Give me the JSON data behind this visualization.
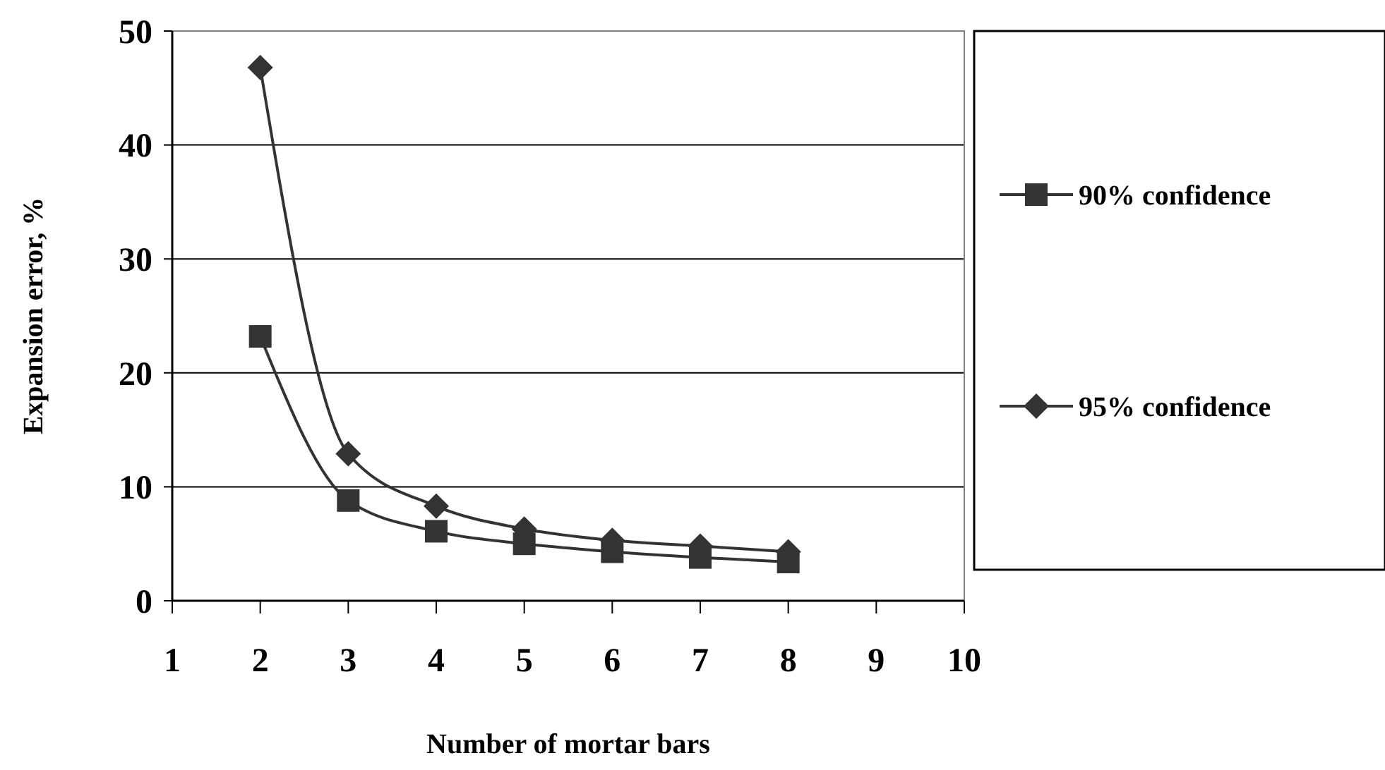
{
  "chart_data": {
    "type": "line",
    "xlabel": "Number of mortar bars",
    "ylabel": "Expansion error, %",
    "x": [
      2,
      3,
      4,
      5,
      6,
      7,
      8
    ],
    "xlim": [
      1,
      10
    ],
    "xticks": [
      1,
      2,
      3,
      4,
      5,
      6,
      7,
      8,
      9,
      10
    ],
    "ylim": [
      0,
      50
    ],
    "yticks": [
      0,
      10,
      20,
      30,
      40,
      50
    ],
    "grid": "y",
    "legend": "right",
    "series": [
      {
        "name": "90% confidence",
        "color": "#333333",
        "marker": "square",
        "values": [
          23.2,
          8.8,
          6.1,
          5.0,
          4.3,
          3.8,
          3.4
        ]
      },
      {
        "name": "95% confidence",
        "color": "#333333",
        "marker": "diamond",
        "values": [
          46.8,
          12.9,
          8.3,
          6.3,
          5.3,
          4.8,
          4.3
        ]
      }
    ]
  }
}
